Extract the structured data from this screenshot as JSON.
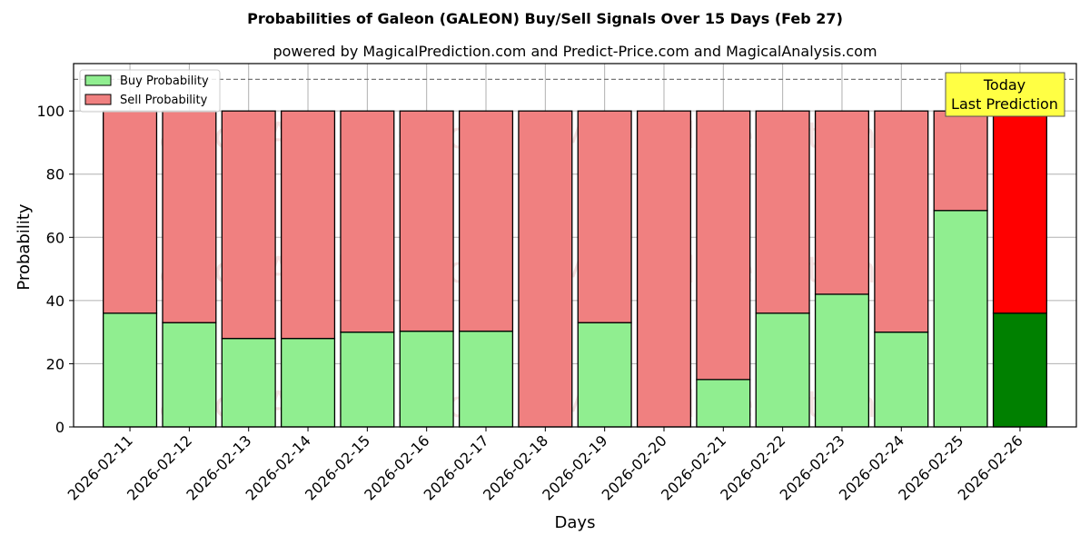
{
  "chart_data": {
    "type": "bar",
    "stacked": true,
    "title": "Probabilities of Galeon (GALEON) Buy/Sell Signals Over 15 Days (Feb 27)",
    "subtitle": "powered by MagicalPrediction.com and Predict-Price.com and MagicalAnalysis.com",
    "xlabel": "Days",
    "ylabel": "Probability",
    "ylim": [
      0,
      115
    ],
    "yticks": [
      0,
      20,
      40,
      60,
      80,
      100
    ],
    "grid": true,
    "legend_position": "top-left",
    "reference_line": 110,
    "categories": [
      "2026-02-11",
      "2026-02-12",
      "2026-02-13",
      "2026-02-14",
      "2026-02-15",
      "2026-02-16",
      "2026-02-17",
      "2026-02-18",
      "2026-02-19",
      "2026-02-20",
      "2026-02-21",
      "2026-02-22",
      "2026-02-23",
      "2026-02-24",
      "2026-02-25",
      "2026-02-26"
    ],
    "series": [
      {
        "name": "Buy Probability",
        "color": "#90ee90",
        "values": [
          36,
          33,
          28,
          28,
          30,
          30.3,
          30.3,
          0,
          33,
          0,
          15,
          36,
          42,
          30,
          68.5,
          36
        ]
      },
      {
        "name": "Sell Probability",
        "color": "#f08080",
        "values": [
          64,
          67,
          72,
          72,
          70,
          69.7,
          69.7,
          100,
          67,
          100,
          85,
          64,
          58,
          70,
          31.5,
          64
        ]
      }
    ],
    "highlight": {
      "index": 15,
      "buy_color": "#008000",
      "sell_color": "#ff0000"
    },
    "annotation": {
      "lines": [
        "Today",
        "Last Prediction"
      ],
      "color": "#ffff44"
    },
    "watermarks": [
      "MagicalAnalysis.com",
      "MagicalPrediction.com"
    ]
  }
}
